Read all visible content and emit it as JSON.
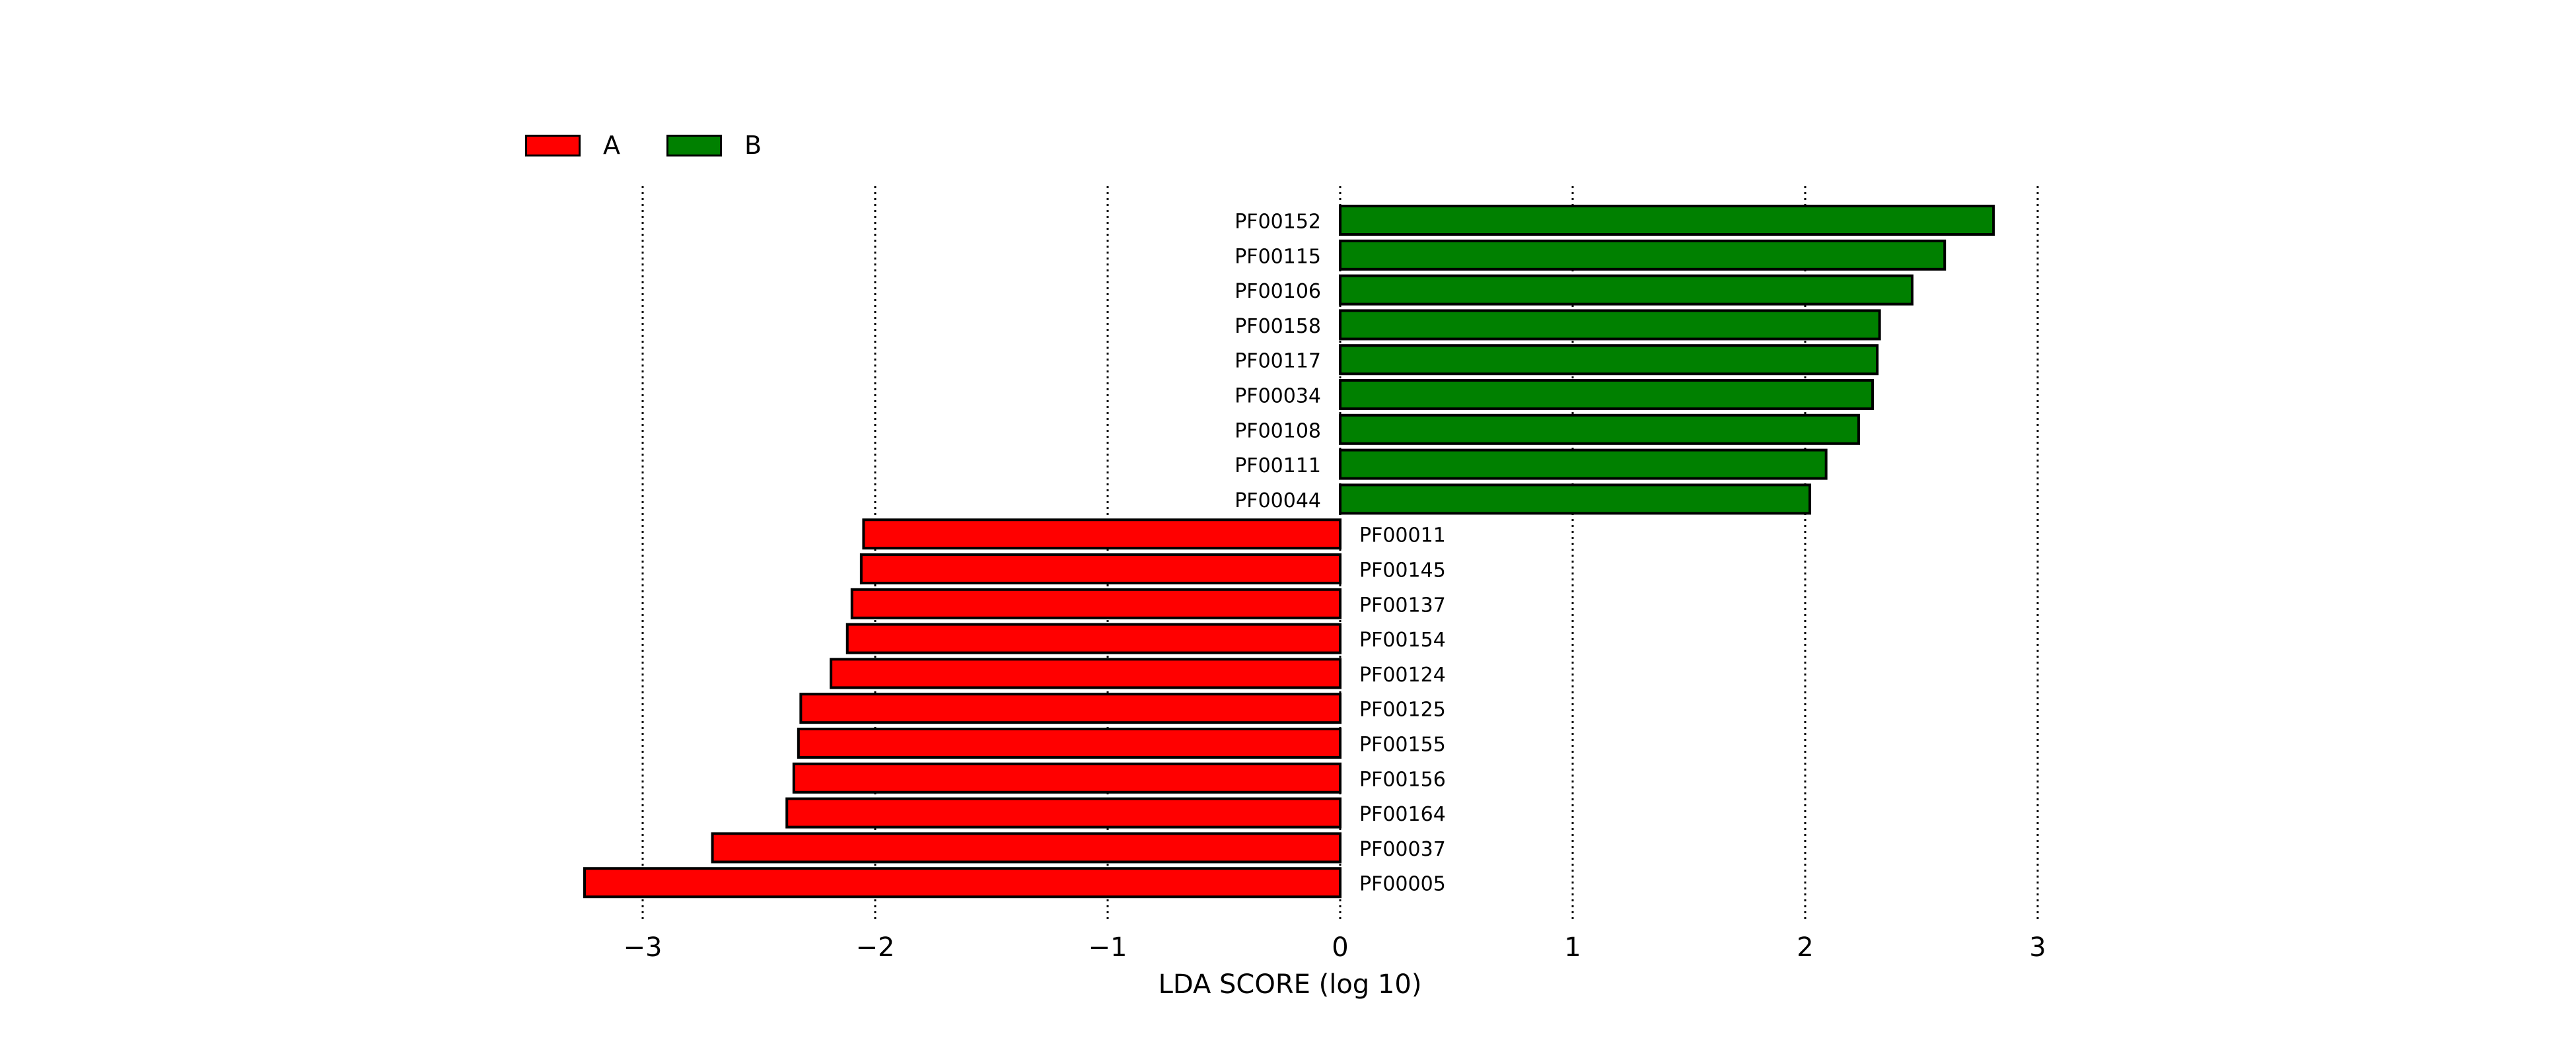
{
  "colors": {
    "A": "#ff0000",
    "B": "#008000"
  },
  "legend": [
    {
      "label": "A",
      "color": "#ff0000"
    },
    {
      "label": "B",
      "color": "#008000"
    }
  ],
  "chart_data": {
    "type": "bar",
    "orientation": "horizontal",
    "title": "",
    "xlabel": "LDA SCORE (log 10)",
    "ylabel": "",
    "xlim": [
      -3.25,
      3
    ],
    "xticks": [
      -3,
      -2,
      -1,
      0,
      1,
      2,
      3
    ],
    "xtick_labels": [
      "−3",
      "−2",
      "−1",
      "0",
      "1",
      "2",
      "3"
    ],
    "grid": "vertical dotted",
    "legend_position": "top-left",
    "bars": [
      {
        "feature": "PF00152",
        "value": 2.81,
        "group": "B"
      },
      {
        "feature": "PF00115",
        "value": 2.6,
        "group": "B"
      },
      {
        "feature": "PF00106",
        "value": 2.46,
        "group": "B"
      },
      {
        "feature": "PF00158",
        "value": 2.32,
        "group": "B"
      },
      {
        "feature": "PF00117",
        "value": 2.31,
        "group": "B"
      },
      {
        "feature": "PF00034",
        "value": 2.29,
        "group": "B"
      },
      {
        "feature": "PF00108",
        "value": 2.23,
        "group": "B"
      },
      {
        "feature": "PF00111",
        "value": 2.09,
        "group": "B"
      },
      {
        "feature": "PF00044",
        "value": 2.02,
        "group": "B"
      },
      {
        "feature": "PF00011",
        "value": -2.05,
        "group": "A"
      },
      {
        "feature": "PF00145",
        "value": -2.06,
        "group": "A"
      },
      {
        "feature": "PF00137",
        "value": -2.1,
        "group": "A"
      },
      {
        "feature": "PF00154",
        "value": -2.12,
        "group": "A"
      },
      {
        "feature": "PF00124",
        "value": -2.19,
        "group": "A"
      },
      {
        "feature": "PF00125",
        "value": -2.32,
        "group": "A"
      },
      {
        "feature": "PF00155",
        "value": -2.33,
        "group": "A"
      },
      {
        "feature": "PF00156",
        "value": -2.35,
        "group": "A"
      },
      {
        "feature": "PF00164",
        "value": -2.38,
        "group": "A"
      },
      {
        "feature": "PF00037",
        "value": -2.7,
        "group": "A"
      },
      {
        "feature": "PF00005",
        "value": -3.25,
        "group": "A"
      }
    ]
  }
}
